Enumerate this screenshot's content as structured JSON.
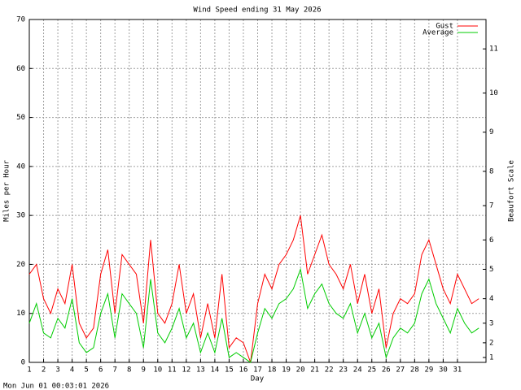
{
  "chart_data": {
    "type": "line",
    "title": "Wind Speed ending 31 May 2026",
    "xlabel": "Day",
    "ylabel": "Miles per Hour",
    "y2label": "Beaufort Scale",
    "footer": "Mon Jun 01 00:03:01 2026",
    "x": [
      1,
      1.5,
      2,
      2.5,
      3,
      3.5,
      4,
      4.5,
      5,
      5.5,
      6,
      6.5,
      7,
      7.5,
      8,
      8.5,
      9,
      9.5,
      10,
      10.5,
      11,
      11.5,
      12,
      12.5,
      13,
      13.5,
      14,
      14.5,
      15,
      15.5,
      16,
      16.5,
      17,
      17.5,
      18,
      18.5,
      19,
      19.5,
      20,
      20.5,
      21,
      21.5,
      22,
      22.5,
      23,
      23.5,
      24,
      24.5,
      25,
      25.5,
      26,
      26.5,
      27,
      27.5,
      28,
      28.5,
      29,
      29.5,
      30,
      30.5,
      31,
      31.5,
      32,
      32.5
    ],
    "series": [
      {
        "name": "Gust",
        "color": "#ff0000",
        "values": [
          18,
          20,
          13,
          10,
          15,
          12,
          20,
          8,
          5,
          7,
          18,
          23,
          10,
          22,
          20,
          18,
          8,
          25,
          10,
          8,
          12,
          20,
          10,
          14,
          5,
          12,
          5,
          18,
          3,
          5,
          4,
          0,
          12,
          18,
          15,
          20,
          22,
          25,
          30,
          18,
          22,
          26,
          20,
          18,
          15,
          20,
          12,
          18,
          10,
          15,
          3,
          10,
          13,
          12,
          14,
          22,
          25,
          20,
          15,
          12,
          18,
          15,
          12,
          13
        ]
      },
      {
        "name": "Average",
        "color": "#00cc00",
        "values": [
          8,
          12,
          6,
          5,
          9,
          7,
          13,
          4,
          2,
          3,
          10,
          14,
          5,
          14,
          12,
          10,
          3,
          17,
          6,
          4,
          7,
          11,
          5,
          8,
          2,
          6,
          2,
          9,
          1,
          2,
          1,
          0,
          6,
          11,
          9,
          12,
          13,
          15,
          19,
          11,
          14,
          16,
          12,
          10,
          9,
          12,
          6,
          10,
          5,
          8,
          1,
          5,
          7,
          6,
          8,
          14,
          17,
          12,
          9,
          6,
          11,
          8,
          6,
          7
        ]
      }
    ],
    "xlim": [
      1,
      33
    ],
    "xticks": [
      1,
      2,
      3,
      4,
      5,
      6,
      7,
      8,
      9,
      10,
      11,
      12,
      13,
      14,
      15,
      16,
      17,
      18,
      19,
      20,
      21,
      22,
      23,
      24,
      25,
      26,
      27,
      28,
      29,
      30,
      31
    ],
    "ylim": [
      0,
      70
    ],
    "yticks": [
      0,
      10,
      20,
      30,
      40,
      50,
      60,
      70
    ],
    "y2lim": [
      0,
      70
    ],
    "y2ticks": [
      1,
      {
        "value": 4,
        "label": "2"
      },
      {
        "value": 8,
        "label": "3"
      },
      {
        "value": 13,
        "label": "4"
      },
      {
        "value": 19,
        "label": "5"
      },
      {
        "value": 25,
        "label": "6"
      },
      {
        "value": 32,
        "label": "7"
      },
      {
        "value": 39,
        "label": "8"
      },
      {
        "value": 47,
        "label": "9"
      },
      {
        "value": 55,
        "label": "10"
      },
      {
        "value": 64,
        "label": "11"
      }
    ],
    "grid": true,
    "legend": "upper right"
  }
}
